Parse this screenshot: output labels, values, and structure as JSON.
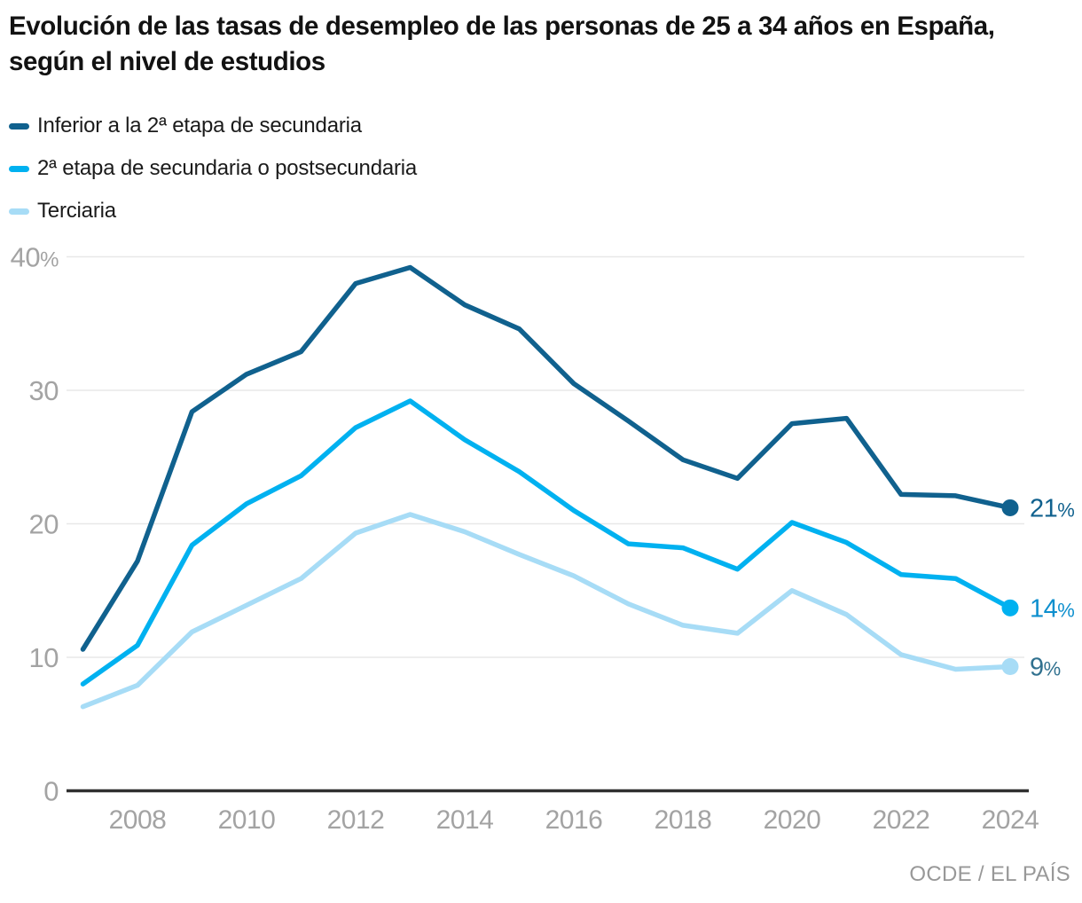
{
  "header": {
    "title": "Evolución de las tasas de desempleo de las personas de 25 a 34 años en España, según el nivel de estudios"
  },
  "source": "OCDE / EL PAÍS",
  "colors": {
    "title_text": "#121212",
    "legend_text": "#1b1b1b",
    "tick_text": "#a3a3a3",
    "gridline": "#e8e8e8",
    "axis_line": "#303030",
    "source_text": "#989898"
  },
  "chart_data": {
    "type": "line",
    "x": [
      2007,
      2008,
      2009,
      2010,
      2011,
      2012,
      2013,
      2014,
      2015,
      2016,
      2017,
      2018,
      2019,
      2020,
      2021,
      2022,
      2023,
      2024
    ],
    "series": [
      {
        "name": "Inferior a la 2ª etapa de secundaria",
        "color": "#10618e",
        "end_label": "21%",
        "end_label_color": "#10618e",
        "values": [
          10.6,
          17.2,
          28.4,
          31.2,
          32.9,
          38.0,
          39.2,
          36.4,
          34.6,
          30.5,
          27.7,
          24.8,
          23.4,
          27.5,
          27.9,
          22.2,
          22.1,
          21.2
        ]
      },
      {
        "name": "2ª etapa de secundaria o postsecundaria",
        "color": "#00b1f0",
        "end_label": "14%",
        "end_label_color": "#0d8fce",
        "values": [
          8.0,
          10.9,
          18.4,
          21.5,
          23.6,
          27.2,
          29.2,
          26.3,
          23.9,
          21.0,
          18.5,
          18.2,
          16.6,
          20.1,
          18.6,
          16.2,
          15.9,
          13.7
        ]
      },
      {
        "name": "Terciaria",
        "color": "#a7dcf6",
        "end_label": "9%",
        "end_label_color": "#31718f",
        "values": [
          6.3,
          7.9,
          11.9,
          13.9,
          15.9,
          19.3,
          20.7,
          19.4,
          17.7,
          16.1,
          14.0,
          12.4,
          11.8,
          15.0,
          13.2,
          10.2,
          9.1,
          9.3
        ]
      }
    ],
    "ylim": [
      0,
      40
    ],
    "y_ticks": [
      {
        "value": 0,
        "label": "0"
      },
      {
        "value": 10,
        "label": "10"
      },
      {
        "value": 20,
        "label": "20"
      },
      {
        "value": 30,
        "label": "30"
      },
      {
        "value": 40,
        "label": "40%"
      }
    ],
    "x_ticks": [
      2008,
      2010,
      2012,
      2014,
      2016,
      2018,
      2020,
      2022,
      2024
    ],
    "grid": true,
    "legend_position": "top-left"
  }
}
